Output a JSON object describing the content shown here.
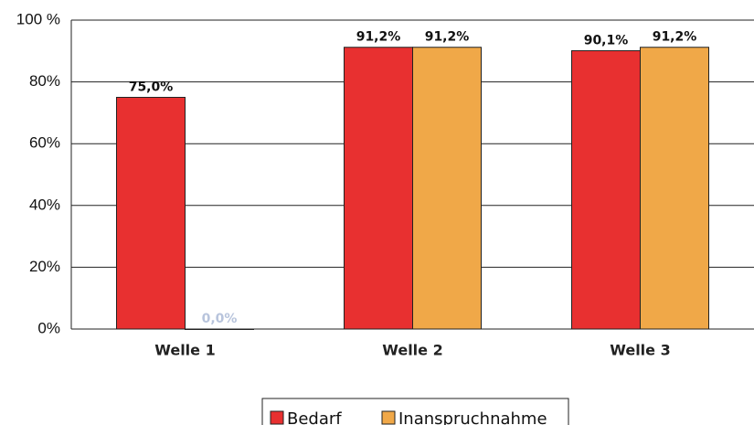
{
  "chart_data": {
    "type": "bar",
    "categories": [
      "Welle 1",
      "Welle 2",
      "Welle 3"
    ],
    "series": [
      {
        "name": "Bedarf",
        "color": "#e83030",
        "values": [
          75.0,
          91.2,
          90.1
        ],
        "value_labels": [
          "75,0%",
          "91,2%",
          "90,1%"
        ]
      },
      {
        "name": "Inanspruchnahme",
        "color": "#f0a848",
        "values": [
          0.0,
          91.2,
          91.2
        ],
        "value_labels": [
          "0,0%",
          "91,2%",
          "91,2%"
        ]
      }
    ],
    "ylim": [
      0,
      100
    ],
    "yticks": [
      {
        "value": 0,
        "label": "0%"
      },
      {
        "value": 20,
        "label": "20%"
      },
      {
        "value": 40,
        "label": "40%"
      },
      {
        "value": 60,
        "label": "60%"
      },
      {
        "value": 80,
        "label": "80%"
      },
      {
        "value": 100,
        "label": "100 %"
      }
    ],
    "grid": true
  }
}
